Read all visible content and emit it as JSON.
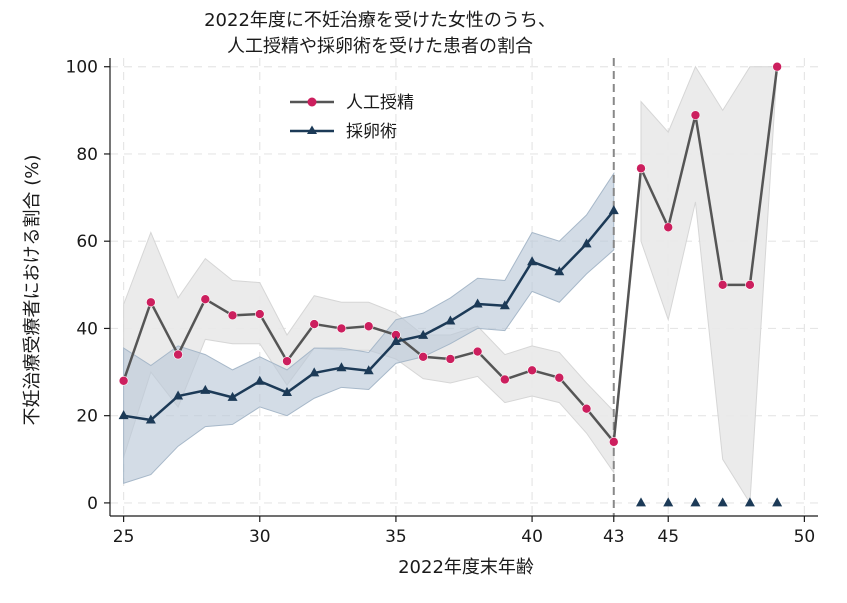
{
  "chart_data": {
    "type": "line",
    "title_lines": [
      "2022年度に不妊治療を受けた女性のうち、",
      "人工授精や採卵術を受けた患者の割合"
    ],
    "xlabel": "2022年度末年齢",
    "ylabel": "不妊治療受療者における割合 (%)",
    "xlim": [
      24.5,
      50.5
    ],
    "ylim": [
      -3,
      102
    ],
    "xticks": [
      25,
      30,
      35,
      40,
      43,
      45,
      50
    ],
    "yticks": [
      0,
      20,
      40,
      60,
      80,
      100
    ],
    "cutoff_x": 43,
    "legend": [
      "人工授精",
      "採卵術"
    ],
    "colors": {
      "insemination": "#555555",
      "insemination_marker": "#cc1f5e",
      "insemination_band": "#e9e9e9",
      "retrieval": "#1c3a57",
      "retrieval_band": "#bccad8",
      "cutoff": "#888888"
    },
    "series": [
      {
        "name": "人工授精",
        "x": [
          25,
          26,
          27,
          28,
          29,
          30,
          31,
          32,
          33,
          34,
          35,
          36,
          37,
          38,
          39,
          40,
          41,
          42,
          43
        ],
        "values": [
          28,
          46,
          34,
          46.7,
          43,
          43.3,
          32.5,
          41,
          40,
          40.5,
          38.5,
          33.5,
          33,
          34.7,
          28.3,
          30.4,
          28.7,
          21.6,
          14
        ],
        "lower": [
          10.5,
          30,
          22,
          37.5,
          36.5,
          36.5,
          27,
          35.5,
          35,
          35,
          33,
          28.5,
          27.5,
          29,
          23,
          24.5,
          23,
          16,
          7
        ],
        "upper": [
          45.5,
          62,
          47,
          56,
          51,
          50.5,
          38.5,
          47.5,
          46,
          46,
          43.5,
          38.5,
          38.5,
          40.5,
          34,
          36,
          34.5,
          27.5,
          21
        ]
      },
      {
        "name": "人工授精",
        "x": [
          44,
          45,
          46,
          47,
          48,
          49
        ],
        "values": [
          76.7,
          63.2,
          88.9,
          50,
          50,
          100
        ],
        "lower": [
          60,
          42,
          69,
          10,
          0,
          100
        ],
        "upper": [
          92,
          85,
          100,
          90,
          100,
          100
        ]
      },
      {
        "name": "採卵術",
        "x": [
          25,
          26,
          27,
          28,
          29,
          30,
          31,
          32,
          33,
          34,
          35,
          36,
          37,
          38,
          39,
          40,
          41,
          42,
          43
        ],
        "values": [
          20,
          19,
          24.5,
          25.8,
          24.2,
          27.9,
          25.3,
          29.8,
          31,
          30.3,
          37,
          38.4,
          41.7,
          45.6,
          45.2,
          55.3,
          53,
          59.4,
          67
        ],
        "lower": [
          4.5,
          6.5,
          13,
          17.5,
          18,
          22,
          20,
          24,
          26.5,
          26,
          32,
          33.5,
          36.5,
          40,
          39.5,
          48.5,
          46,
          52.5,
          58
        ],
        "upper": [
          35.5,
          31.5,
          36,
          34,
          30.5,
          33.5,
          30.5,
          35.5,
          35.5,
          34.5,
          42,
          43.5,
          47,
          51.5,
          51,
          62,
          60,
          66,
          75.5
        ]
      },
      {
        "name": "採卵術",
        "x": [
          44,
          45,
          46,
          47,
          48,
          49
        ],
        "values": [
          0,
          0,
          0,
          0,
          0,
          0
        ]
      }
    ]
  }
}
